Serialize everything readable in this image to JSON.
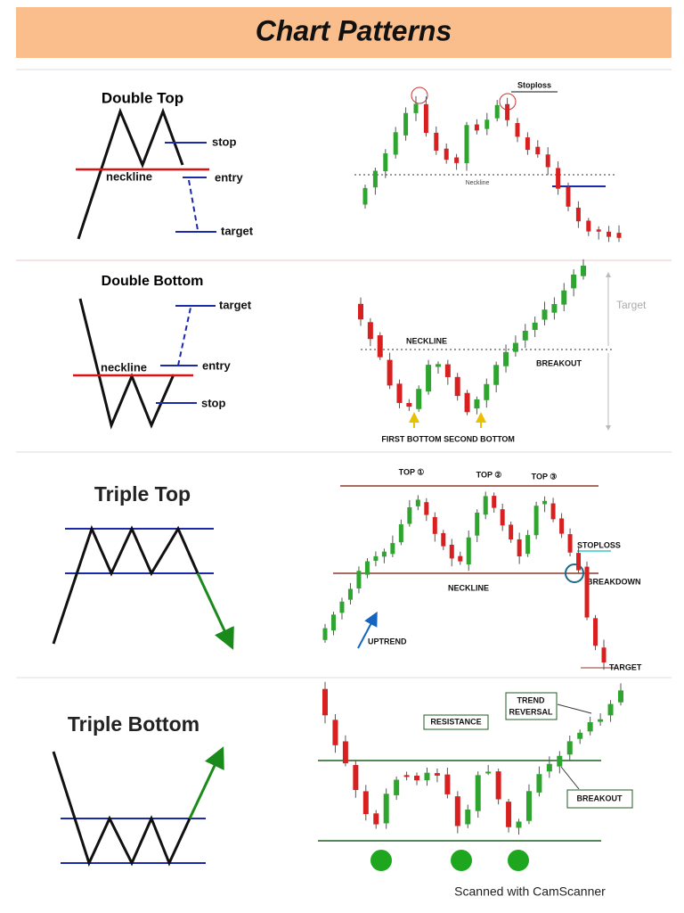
{
  "header": {
    "title": "Chart Patterns"
  },
  "panels": [
    {
      "title": "Double Top",
      "labels": [
        "stop",
        "neckline",
        "entry",
        "target"
      ],
      "chart_labels": [
        "Stoploss",
        "Neckline"
      ]
    },
    {
      "title": "Double Bottom",
      "labels": [
        "target",
        "neckline",
        "entry",
        "stop"
      ],
      "chart_labels": [
        "Target",
        "NECKLINE",
        "BREAKOUT",
        "FIRST BOTTOM",
        "SECOND BOTTOM"
      ]
    },
    {
      "title": "Triple Top",
      "labels": [],
      "chart_labels": [
        "TOP ①",
        "TOP ②",
        "TOP ③",
        "STOPLOSS",
        "NECKLINE",
        "BREAKDOWN",
        "UPTREND",
        "TARGET"
      ]
    },
    {
      "title": "Triple Bottom",
      "labels": [],
      "chart_labels": [
        "RESISTANCE",
        "TREND",
        "REVERSAL",
        "BREAKOUT"
      ]
    }
  ],
  "footer": "Scanned with CamScanner"
}
